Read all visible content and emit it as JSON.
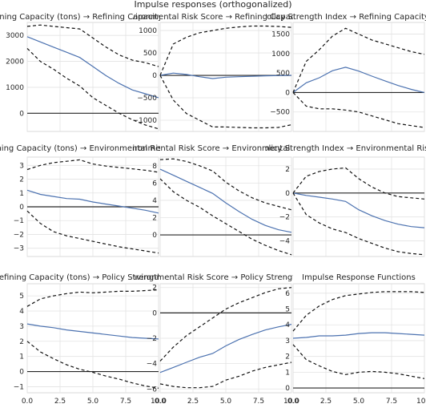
{
  "suptitle": "Impulse responses (orthogonalized)",
  "chart_data": [
    {
      "type": "line",
      "title": "ining Capacity (tons) → Refining Capacity (tons)",
      "x": [
        0,
        1,
        2,
        3,
        4,
        5,
        6,
        7,
        8,
        9,
        10
      ],
      "ylim": [
        -700,
        3500
      ],
      "yticks": [
        0,
        1000,
        2000,
        3000
      ],
      "xticks": [
        "",
        "",
        "",
        "",
        ""
      ],
      "series": [
        {
          "role": "irf",
          "values": [
            2950,
            2750,
            2550,
            2350,
            2150,
            1800,
            1450,
            1150,
            900,
            750,
            600
          ]
        },
        {
          "role": "upper",
          "values": [
            3350,
            3400,
            3350,
            3300,
            3250,
            2900,
            2550,
            2250,
            2050,
            1950,
            1800
          ]
        },
        {
          "role": "lower",
          "values": [
            2500,
            2000,
            1700,
            1350,
            1050,
            600,
            300,
            0,
            -250,
            -450,
            -600
          ]
        }
      ]
    },
    {
      "type": "line",
      "title": "Environmental Risk Score → Refining Capacity (tons)",
      "x": [
        0,
        1,
        2,
        3,
        4,
        5,
        6,
        7,
        8,
        9,
        10
      ],
      "ylim": [
        -1250,
        1180
      ],
      "yticks": [
        -1000,
        -500,
        0,
        500,
        1000
      ],
      "xticks": [
        "",
        "",
        "",
        "",
        ""
      ],
      "series": [
        {
          "role": "irf",
          "values": [
            0,
            50,
            20,
            -30,
            -70,
            -40,
            -30,
            -20,
            -10,
            -5,
            0
          ]
        },
        {
          "role": "upper",
          "values": [
            0,
            700,
            850,
            950,
            1000,
            1050,
            1080,
            1100,
            1100,
            1090,
            1070
          ]
        },
        {
          "role": "lower",
          "values": [
            0,
            -550,
            -850,
            -1000,
            -1150,
            -1150,
            -1160,
            -1170,
            -1170,
            -1160,
            -1100
          ]
        }
      ]
    },
    {
      "type": "line",
      "title": "Policy Strength Index → Refining Capacity (tons)",
      "x": [
        0,
        1,
        2,
        3,
        4,
        5,
        6,
        7,
        8,
        9,
        10
      ],
      "ylim": [
        -1000,
        1800
      ],
      "yticks": [
        -500,
        0,
        500,
        1000,
        1500
      ],
      "xticks": [
        "",
        "",
        "",
        "",
        ""
      ],
      "series": [
        {
          "role": "irf",
          "values": [
            0,
            250,
            380,
            560,
            650,
            550,
            420,
            300,
            180,
            80,
            0
          ]
        },
        {
          "role": "upper",
          "values": [
            0,
            800,
            1100,
            1450,
            1650,
            1500,
            1350,
            1250,
            1150,
            1050,
            980
          ]
        },
        {
          "role": "lower",
          "values": [
            0,
            -350,
            -420,
            -420,
            -450,
            -500,
            -600,
            -700,
            -800,
            -850,
            -900
          ]
        }
      ]
    },
    {
      "type": "line",
      "title": "ining Capacity (tons) → Environmental Risk Score",
      "x": [
        0,
        1,
        2,
        3,
        4,
        5,
        6,
        7,
        8,
        9,
        10
      ],
      "ylim": [
        -3.6,
        3.6
      ],
      "yticks": [
        -3,
        -2,
        -1,
        0,
        1,
        2,
        3
      ],
      "xticks": [
        "",
        "",
        "",
        "",
        ""
      ],
      "series": [
        {
          "role": "irf",
          "values": [
            1.2,
            0.9,
            0.75,
            0.6,
            0.55,
            0.35,
            0.2,
            0.05,
            -0.1,
            -0.25,
            -0.45
          ]
        },
        {
          "role": "upper",
          "values": [
            2.7,
            3.0,
            3.2,
            3.3,
            3.4,
            3.1,
            2.95,
            2.85,
            2.75,
            2.65,
            2.5
          ]
        },
        {
          "role": "lower",
          "values": [
            -0.3,
            -1.2,
            -1.8,
            -2.1,
            -2.3,
            -2.5,
            -2.7,
            -2.9,
            -3.05,
            -3.2,
            -3.35
          ]
        }
      ]
    },
    {
      "type": "line",
      "title": "Environmental Risk Score → Environmental Risk Score",
      "x": [
        0,
        1,
        2,
        3,
        4,
        5,
        6,
        7,
        8,
        9,
        10
      ],
      "ylim": [
        -2.5,
        9.0
      ],
      "yticks": [
        0,
        2,
        4,
        6,
        8
      ],
      "xticks": [
        "",
        "",
        "",
        "",
        ""
      ],
      "series": [
        {
          "role": "irf",
          "values": [
            7.6,
            6.9,
            6.2,
            5.5,
            4.8,
            3.7,
            2.7,
            1.8,
            1.1,
            0.6,
            0.3
          ]
        },
        {
          "role": "upper",
          "values": [
            8.7,
            8.8,
            8.5,
            8.0,
            7.4,
            6.1,
            5.1,
            4.3,
            3.7,
            3.3,
            2.9
          ]
        },
        {
          "role": "lower",
          "values": [
            6.5,
            5.0,
            4.0,
            3.2,
            2.2,
            1.3,
            0.4,
            -0.5,
            -1.2,
            -1.8,
            -2.3
          ]
        }
      ]
    },
    {
      "type": "line",
      "title": "Policy Strength Index → Environmental Risk Score",
      "x": [
        0,
        1,
        2,
        3,
        4,
        5,
        6,
        7,
        8,
        9,
        10
      ],
      "ylim": [
        -5.3,
        3.0
      ],
      "yticks": [
        -4,
        -2,
        0,
        2
      ],
      "xticks": [
        "",
        "",
        "",
        "",
        ""
      ],
      "series": [
        {
          "role": "irf",
          "values": [
            0,
            -0.2,
            -0.35,
            -0.5,
            -0.7,
            -1.4,
            -1.9,
            -2.3,
            -2.6,
            -2.8,
            -2.9
          ]
        },
        {
          "role": "upper",
          "values": [
            0,
            1.4,
            1.8,
            2.0,
            2.1,
            1.2,
            0.5,
            0.0,
            -0.3,
            -0.4,
            -0.5
          ]
        },
        {
          "role": "lower",
          "values": [
            0,
            -1.8,
            -2.5,
            -3.0,
            -3.3,
            -3.8,
            -4.2,
            -4.6,
            -4.9,
            -5.05,
            -5.15
          ]
        }
      ]
    },
    {
      "type": "line",
      "title": "efining Capacity (tons) → Policy Strength Index",
      "x": [
        0,
        1,
        2,
        3,
        4,
        5,
        6,
        7,
        8,
        9,
        10
      ],
      "ylim": [
        -1.4,
        5.8
      ],
      "yticks": [
        -1,
        0,
        1,
        2,
        3,
        4,
        5
      ],
      "xticks": [
        "0.0",
        "2.5",
        "5.0",
        "7.5",
        "10.0"
      ],
      "series": [
        {
          "role": "irf",
          "values": [
            3.15,
            3.0,
            2.9,
            2.75,
            2.65,
            2.55,
            2.45,
            2.35,
            2.25,
            2.2,
            2.15
          ]
        },
        {
          "role": "upper",
          "values": [
            4.3,
            4.8,
            5.0,
            5.15,
            5.25,
            5.2,
            5.25,
            5.3,
            5.3,
            5.35,
            5.4
          ]
        },
        {
          "role": "lower",
          "values": [
            2.0,
            1.3,
            0.85,
            0.45,
            0.15,
            -0.05,
            -0.3,
            -0.5,
            -0.75,
            -0.95,
            -1.1
          ]
        }
      ]
    },
    {
      "type": "line",
      "title": "Environmental Risk Score → Policy Strength Index",
      "x": [
        0,
        1,
        2,
        3,
        4,
        5,
        6,
        7,
        8,
        9,
        10
      ],
      "ylim": [
        -6.3,
        2.3
      ],
      "yticks": [
        -6,
        -4,
        -2,
        0,
        2
      ],
      "xticks": [
        "0.0",
        "2.5",
        "5.0",
        "7.5",
        "10.0"
      ],
      "series": [
        {
          "role": "irf",
          "values": [
            -4.7,
            -4.3,
            -3.9,
            -3.5,
            -3.2,
            -2.6,
            -2.1,
            -1.7,
            -1.35,
            -1.1,
            -0.9
          ]
        },
        {
          "role": "upper",
          "values": [
            -3.8,
            -2.7,
            -1.8,
            -1.1,
            -0.4,
            0.3,
            0.8,
            1.2,
            1.6,
            1.9,
            2.0
          ]
        },
        {
          "role": "lower",
          "values": [
            -5.6,
            -5.8,
            -5.9,
            -5.9,
            -5.8,
            -5.3,
            -5.0,
            -4.6,
            -4.3,
            -4.1,
            -3.9
          ]
        }
      ]
    },
    {
      "type": "line",
      "title": "Impulse Response Functions",
      "x": [
        0,
        1,
        2,
        3,
        4,
        5,
        6,
        7,
        8,
        9,
        10
      ],
      "ylim": [
        -0.3,
        6.6
      ],
      "yticks": [
        0,
        1,
        2,
        3,
        4,
        5,
        6
      ],
      "xticks": [
        "0.0",
        "2.5",
        "5.0",
        "7.5",
        "10.0"
      ],
      "series": [
        {
          "role": "irf",
          "values": [
            3.15,
            3.2,
            3.3,
            3.3,
            3.35,
            3.45,
            3.5,
            3.5,
            3.45,
            3.4,
            3.35
          ]
        },
        {
          "role": "upper",
          "values": [
            3.6,
            4.6,
            5.2,
            5.6,
            5.85,
            5.95,
            6.05,
            6.1,
            6.1,
            6.1,
            6.05
          ]
        },
        {
          "role": "lower",
          "values": [
            2.75,
            1.8,
            1.4,
            1.05,
            0.85,
            1.0,
            1.05,
            1.0,
            0.9,
            0.75,
            0.6
          ]
        }
      ]
    }
  ]
}
